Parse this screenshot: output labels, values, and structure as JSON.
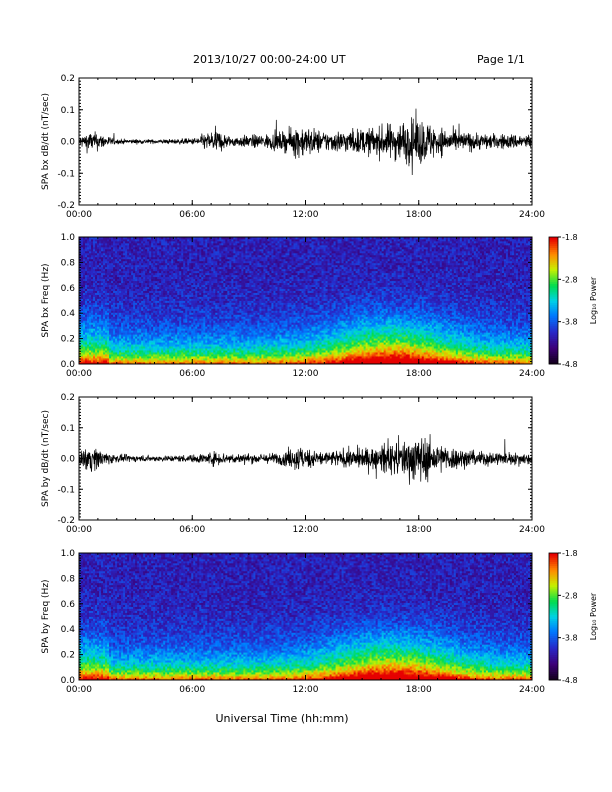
{
  "header": {
    "date_range": "2013/10/27  00:00-24:00 UT",
    "page": "Page 1/1"
  },
  "xlabel": "Universal Time (hh:mm)",
  "chart_data": [
    {
      "type": "line",
      "ylabel": "SPA bx dB/dt (nT/sec)",
      "ylim": [
        -0.2,
        0.2
      ],
      "yticks": [
        "-0.2",
        "-0.1",
        "0.0",
        "0.1",
        "0.2"
      ],
      "xticks": [
        "00:00",
        "06:00",
        "12:00",
        "18:00",
        "24:00"
      ],
      "xlim_hours": [
        0,
        24
      ],
      "series": [
        {
          "profile_hours": [
            0,
            0.5,
            1,
            2,
            4,
            6,
            7.3,
            8,
            9,
            10,
            11,
            11.7,
            12,
            13,
            14,
            15,
            16,
            16.5,
            17,
            18,
            19,
            20,
            21,
            22,
            23,
            24
          ],
          "envelope": [
            0.02,
            0.04,
            0.035,
            0.01,
            0.008,
            0.012,
            0.05,
            0.02,
            0.025,
            0.03,
            0.04,
            0.07,
            0.06,
            0.04,
            0.045,
            0.05,
            0.06,
            0.07,
            0.08,
            0.095,
            0.06,
            0.04,
            0.035,
            0.03,
            0.03,
            0.03
          ]
        }
      ]
    },
    {
      "type": "heatmap",
      "ylabel": "SPA bx Freq (Hz)",
      "ylim": [
        0,
        1
      ],
      "yticks": [
        "0.0",
        "0.2",
        "0.4",
        "0.6",
        "0.8",
        "1.0"
      ],
      "xticks": [
        "00:00",
        "06:00",
        "12:00",
        "18:00",
        "24:00"
      ],
      "colorbar": {
        "label": "Log₁₀ Power",
        "ticks": [
          "-1.8",
          "-2.8",
          "-3.8",
          "-4.8"
        ],
        "range": [
          -4.8,
          -1.8
        ]
      }
    },
    {
      "type": "line",
      "ylabel": "SPA by dB/dt (nT/sec)",
      "ylim": [
        -0.2,
        0.2
      ],
      "yticks": [
        "-0.2",
        "-0.1",
        "0.0",
        "0.1",
        "0.2"
      ],
      "xticks": [
        "00:00",
        "06:00",
        "12:00",
        "18:00",
        "24:00"
      ],
      "xlim_hours": [
        0,
        24
      ],
      "series": [
        {
          "profile_hours": [
            0,
            0.5,
            1,
            2,
            4,
            6,
            7.3,
            8,
            9,
            10,
            11,
            11.7,
            12,
            13,
            14,
            15,
            16,
            16.5,
            17,
            18,
            19,
            20,
            21,
            22,
            23,
            24
          ],
          "envelope": [
            0.02,
            0.06,
            0.04,
            0.015,
            0.012,
            0.015,
            0.03,
            0.02,
            0.02,
            0.02,
            0.03,
            0.06,
            0.04,
            0.03,
            0.035,
            0.04,
            0.05,
            0.07,
            0.07,
            0.1,
            0.06,
            0.045,
            0.03,
            0.03,
            0.025,
            0.025
          ]
        }
      ]
    },
    {
      "type": "heatmap",
      "ylabel": "SPA by Freq (Hz)",
      "ylim": [
        0,
        1
      ],
      "yticks": [
        "0.0",
        "0.2",
        "0.4",
        "0.6",
        "0.8",
        "1.0"
      ],
      "xticks": [
        "00:00",
        "06:00",
        "12:00",
        "18:00",
        "24:00"
      ],
      "colorbar": {
        "label": "Log₁₀ Power",
        "ticks": [
          "-1.8",
          "-2.8",
          "-3.8",
          "-4.8"
        ],
        "range": [
          -4.8,
          -1.8
        ]
      }
    }
  ]
}
